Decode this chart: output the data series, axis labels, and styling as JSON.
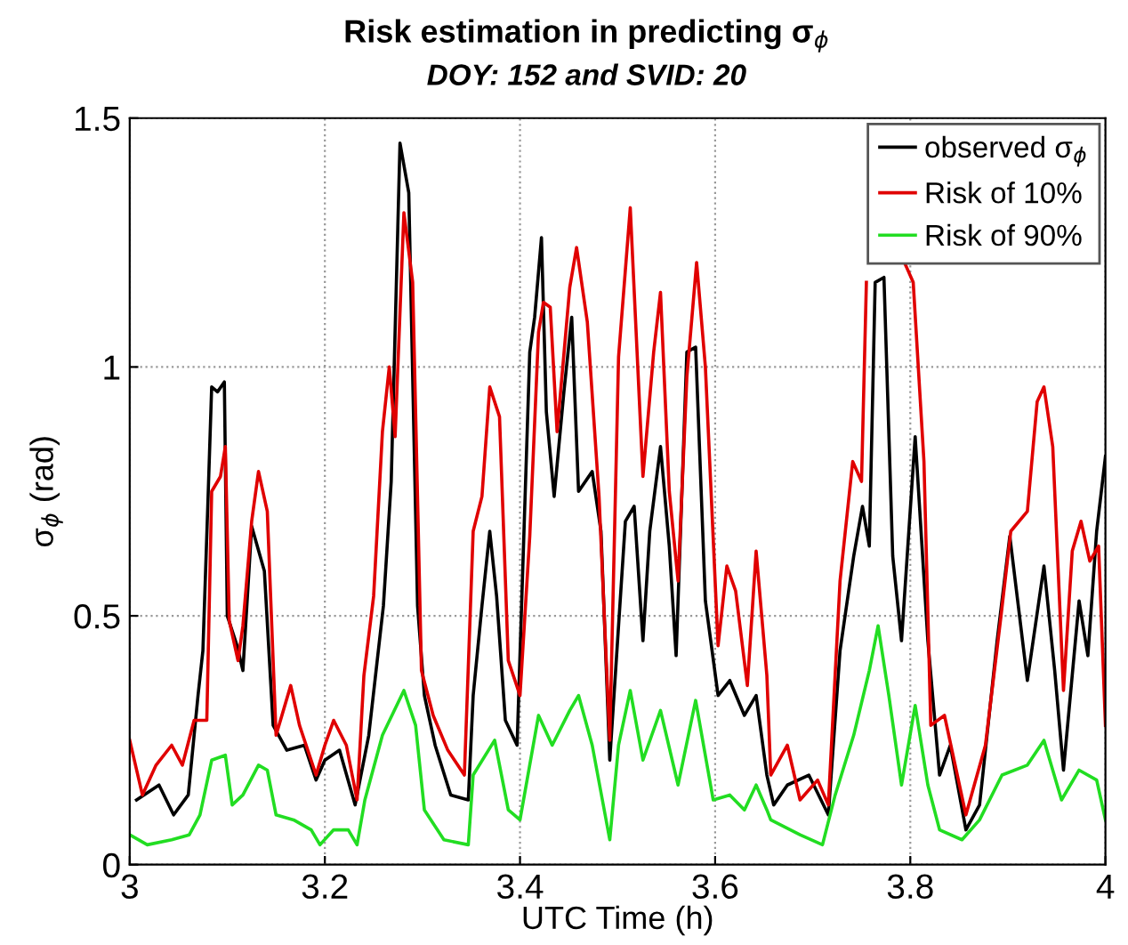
{
  "chart_data": {
    "type": "line",
    "title": "Risk estimation in predicting σ$_{ϕ}$",
    "subtitle": "DOY: 152 and SVID: 20",
    "xlabel": "UTC Time (h)",
    "ylabel": "σ$_{ϕ}$ (rad)",
    "xlim": [
      3,
      4
    ],
    "ylim": [
      0,
      1.5
    ],
    "xticks": [
      3,
      3.2,
      3.4,
      3.6,
      3.8,
      4
    ],
    "yticks": [
      0,
      0.5,
      1,
      1.5
    ],
    "grid": true,
    "legend": "top right",
    "line_style": "solid",
    "marker": "none",
    "series": [
      {
        "name": "observed σ$_{ϕ}$",
        "color": "#000000",
        "x": [
          3.007,
          3.03,
          3.045,
          3.06,
          3.07,
          3.075,
          3.08,
          3.084,
          3.09,
          3.097,
          3.1,
          3.11,
          3.116,
          3.125,
          3.138,
          3.147,
          3.161,
          3.179,
          3.191,
          3.2,
          3.215,
          3.231,
          3.245,
          3.26,
          3.268,
          3.277,
          3.286,
          3.295,
          3.302,
          3.313,
          3.329,
          3.347,
          3.352,
          3.361,
          3.369,
          3.376,
          3.385,
          3.397,
          3.41,
          3.415,
          3.422,
          3.427,
          3.435,
          3.445,
          3.453,
          3.46,
          3.474,
          3.483,
          3.492,
          3.508,
          3.517,
          3.526,
          3.533,
          3.544,
          3.553,
          3.56,
          3.571,
          3.58,
          3.59,
          3.603,
          3.615,
          3.63,
          3.642,
          3.653,
          3.66,
          3.674,
          3.696,
          3.716,
          3.728,
          3.742,
          3.751,
          3.758,
          3.764,
          3.773,
          3.782,
          3.791,
          3.805,
          3.818,
          3.83,
          3.841,
          3.857,
          3.871,
          3.889,
          3.902,
          3.92,
          3.937,
          3.948,
          3.957,
          3.973,
          3.982,
          3.991,
          4.0
        ],
        "values": [
          0.13,
          0.16,
          0.1,
          0.14,
          0.34,
          0.43,
          0.72,
          0.96,
          0.95,
          0.97,
          0.5,
          0.44,
          0.39,
          0.68,
          0.59,
          0.28,
          0.23,
          0.24,
          0.17,
          0.21,
          0.23,
          0.12,
          0.26,
          0.52,
          0.77,
          1.45,
          1.35,
          0.52,
          0.34,
          0.24,
          0.14,
          0.13,
          0.34,
          0.52,
          0.67,
          0.54,
          0.29,
          0.24,
          1.03,
          1.1,
          1.26,
          0.91,
          0.74,
          0.95,
          1.1,
          0.75,
          0.79,
          0.67,
          0.21,
          0.69,
          0.72,
          0.45,
          0.67,
          0.84,
          0.64,
          0.42,
          1.03,
          1.04,
          0.53,
          0.34,
          0.37,
          0.3,
          0.34,
          0.18,
          0.12,
          0.16,
          0.18,
          0.1,
          0.43,
          0.62,
          0.72,
          0.64,
          1.17,
          1.18,
          0.62,
          0.45,
          0.86,
          0.45,
          0.18,
          0.24,
          0.07,
          0.12,
          0.45,
          0.66,
          0.37,
          0.6,
          0.39,
          0.19,
          0.53,
          0.42,
          0.67,
          0.82
        ]
      },
      {
        "name": "Risk of 10%",
        "color": "#e00000",
        "x": [
          3.0,
          3.013,
          3.027,
          3.043,
          3.054,
          3.066,
          3.079,
          3.084,
          3.093,
          3.098,
          3.102,
          3.111,
          3.116,
          3.125,
          3.132,
          3.141,
          3.15,
          3.165,
          3.174,
          3.191,
          3.2,
          3.209,
          3.222,
          3.233,
          3.24,
          3.25,
          3.259,
          3.266,
          3.272,
          3.281,
          3.29,
          3.299,
          3.311,
          3.326,
          3.343,
          3.352,
          3.361,
          3.369,
          3.379,
          3.388,
          3.4,
          3.41,
          3.419,
          3.424,
          3.431,
          3.438,
          3.451,
          3.458,
          3.469,
          3.481,
          3.492,
          3.501,
          3.513,
          3.526,
          3.537,
          3.544,
          3.553,
          3.562,
          3.571,
          3.581,
          3.59,
          3.603,
          3.612,
          3.621,
          3.633,
          3.642,
          3.653,
          3.657,
          3.674,
          3.687,
          3.705,
          3.716,
          3.728,
          3.741,
          3.75,
          3.755,
          3.764,
          3.776,
          3.794,
          3.803,
          3.814,
          3.821,
          3.835,
          3.857,
          3.877,
          3.893,
          3.903,
          3.92,
          3.93,
          3.937,
          3.946,
          3.957,
          3.966,
          3.975,
          3.984,
          3.993,
          4.0
        ],
        "values": [
          0.25,
          0.14,
          0.2,
          0.24,
          0.2,
          0.29,
          0.29,
          0.75,
          0.78,
          0.84,
          0.49,
          0.41,
          0.48,
          0.69,
          0.79,
          0.71,
          0.26,
          0.36,
          0.28,
          0.18,
          0.24,
          0.29,
          0.24,
          0.13,
          0.38,
          0.54,
          0.87,
          1.0,
          0.86,
          1.31,
          1.17,
          0.39,
          0.3,
          0.23,
          0.18,
          0.67,
          0.74,
          0.96,
          0.9,
          0.41,
          0.34,
          0.66,
          1.07,
          1.13,
          1.12,
          0.87,
          1.16,
          1.24,
          1.09,
          0.74,
          0.25,
          1.02,
          1.32,
          0.78,
          1.03,
          1.15,
          0.75,
          0.57,
          0.98,
          1.21,
          1.0,
          0.44,
          0.6,
          0.55,
          0.36,
          0.63,
          0.38,
          0.18,
          0.24,
          0.13,
          0.17,
          0.12,
          0.57,
          0.81,
          0.77,
          1.17,
          null,
          null,
          1.21,
          1.17,
          0.81,
          0.28,
          0.3,
          0.1,
          0.24,
          0.5,
          0.67,
          0.71,
          0.93,
          0.96,
          0.84,
          0.35,
          0.63,
          0.69,
          0.61,
          0.64,
          0.28
        ]
      },
      {
        "name": "Risk of 90%",
        "color": "#22dd22",
        "x": [
          3.0,
          3.018,
          3.043,
          3.061,
          3.072,
          3.084,
          3.098,
          3.105,
          3.116,
          3.132,
          3.141,
          3.15,
          3.168,
          3.186,
          3.195,
          3.209,
          3.224,
          3.233,
          3.241,
          3.259,
          3.281,
          3.293,
          3.302,
          3.322,
          3.347,
          3.352,
          3.374,
          3.388,
          3.4,
          3.419,
          3.433,
          3.451,
          3.46,
          3.474,
          3.492,
          3.501,
          3.513,
          3.526,
          3.544,
          3.562,
          3.58,
          3.598,
          3.615,
          3.63,
          3.642,
          3.653,
          3.657,
          3.687,
          3.71,
          3.723,
          3.742,
          3.758,
          3.767,
          3.778,
          3.791,
          3.805,
          3.818,
          3.83,
          3.853,
          3.871,
          3.894,
          3.92,
          3.937,
          3.955,
          3.973,
          3.991,
          4.0
        ],
        "values": [
          0.06,
          0.04,
          0.05,
          0.06,
          0.1,
          0.21,
          0.22,
          0.12,
          0.14,
          0.2,
          0.19,
          0.1,
          0.09,
          0.07,
          0.04,
          0.07,
          0.07,
          0.04,
          0.13,
          0.26,
          0.35,
          0.28,
          0.11,
          0.05,
          0.04,
          0.18,
          0.25,
          0.11,
          0.09,
          0.3,
          0.24,
          0.31,
          0.34,
          0.24,
          0.05,
          0.24,
          0.35,
          0.21,
          0.31,
          0.16,
          0.33,
          0.13,
          0.14,
          0.11,
          0.16,
          0.11,
          0.09,
          0.06,
          0.04,
          0.14,
          0.26,
          0.39,
          0.48,
          0.34,
          0.16,
          0.32,
          0.16,
          0.07,
          0.05,
          0.09,
          0.18,
          0.2,
          0.25,
          0.13,
          0.19,
          0.17,
          0.09
        ]
      }
    ]
  }
}
